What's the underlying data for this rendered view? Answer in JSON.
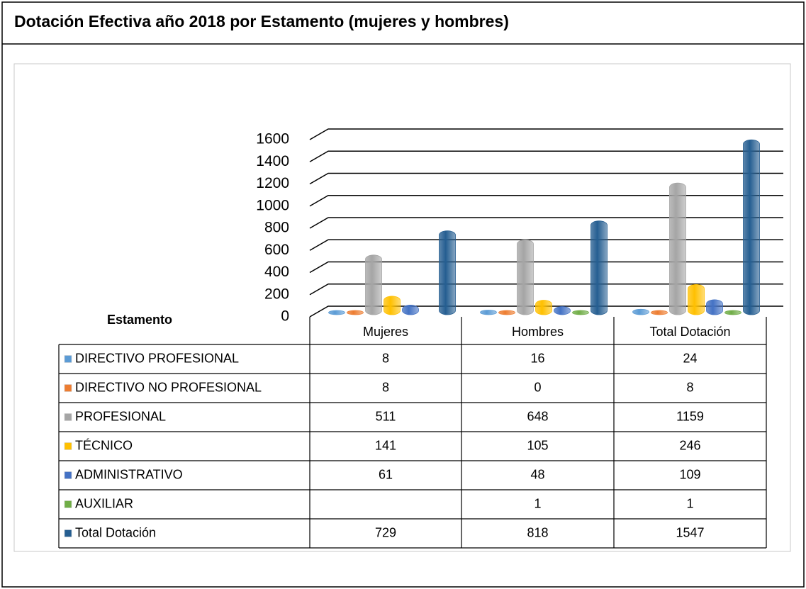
{
  "chart_data": {
    "type": "bar",
    "title": "Dotación Efectiva año 2018 por Estamento (mujeres y hombres)",
    "row_header": "Estamento",
    "categories": [
      "Mujeres",
      "Hombres",
      "Total Dotación"
    ],
    "series": [
      {
        "name": "DIRECTIVO PROFESIONAL",
        "color": "#5b9bd5",
        "values": [
          8,
          16,
          24
        ]
      },
      {
        "name": "DIRECTIVO NO PROFESIONAL",
        "color": "#ed7d31",
        "values": [
          8,
          0,
          8
        ]
      },
      {
        "name": "PROFESIONAL",
        "color": "#a5a5a5",
        "values": [
          511,
          648,
          1159
        ]
      },
      {
        "name": "TÉCNICO",
        "color": "#ffc000",
        "values": [
          141,
          105,
          246
        ]
      },
      {
        "name": "ADMINISTRATIVO",
        "color": "#4472c4",
        "values": [
          61,
          48,
          109
        ]
      },
      {
        "name": "AUXILIAR",
        "color": "#70ad47",
        "values": [
          null,
          1,
          1
        ]
      },
      {
        "name": "Total Dotación",
        "color": "#255e91",
        "values": [
          729,
          818,
          1547
        ]
      }
    ],
    "ylim": [
      0,
      1600
    ],
    "yticks": [
      0,
      200,
      400,
      600,
      800,
      1000,
      1200,
      1400,
      1600
    ],
    "grid": true
  }
}
